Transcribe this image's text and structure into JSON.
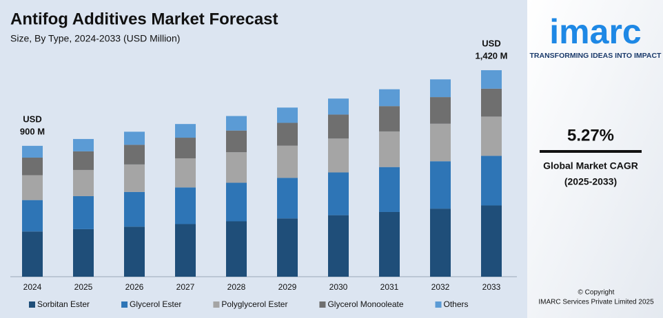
{
  "chart_data": {
    "type": "stacked-bar",
    "title": "Antifog Additives Market Forecast",
    "subtitle": "Size, By Type, 2024-2033 (USD Million)",
    "categories": [
      "2024",
      "2025",
      "2026",
      "2027",
      "2028",
      "2029",
      "2030",
      "2031",
      "2032",
      "2033"
    ],
    "series": [
      {
        "name": "Sorbitan Ester",
        "color": "#1f4e79",
        "values": [
          311,
          327,
          344,
          362,
          381,
          401,
          423,
          445,
          468,
          490
        ]
      },
      {
        "name": "Glycerol Ester",
        "color": "#2e75b6",
        "values": [
          216,
          227,
          239,
          252,
          265,
          279,
          294,
          309,
          326,
          341
        ]
      },
      {
        "name": "Polyglycerol Ester",
        "color": "#a5a5a5",
        "values": [
          171,
          180,
          189,
          200,
          210,
          221,
          233,
          245,
          258,
          270
        ]
      },
      {
        "name": "Glycerol Monooleate",
        "color": "#6f6f6f",
        "values": [
          121,
          128,
          135,
          142,
          149,
          157,
          165,
          174,
          183,
          192
        ]
      },
      {
        "name": "Others",
        "color": "#5b9bd5",
        "values": [
          81,
          85,
          90,
          94,
          100,
          105,
          110,
          116,
          122,
          127
        ]
      }
    ],
    "annotations": [
      {
        "category": "2024",
        "lines": [
          "USD",
          "900 M"
        ]
      },
      {
        "category": "2033",
        "lines": [
          "USD",
          "1,420 M"
        ]
      }
    ],
    "legend": "bottom"
  },
  "branding": {
    "logo": "imarc",
    "tagline": "TRANSFORMING IDEAS INTO IMPACT",
    "cagr": "5.27%",
    "cagr_label": "Global Market CAGR",
    "cagr_period": "(2025-2033)",
    "copyright": "© Copyright",
    "company": "IMARC Services Private Limited 2025"
  }
}
